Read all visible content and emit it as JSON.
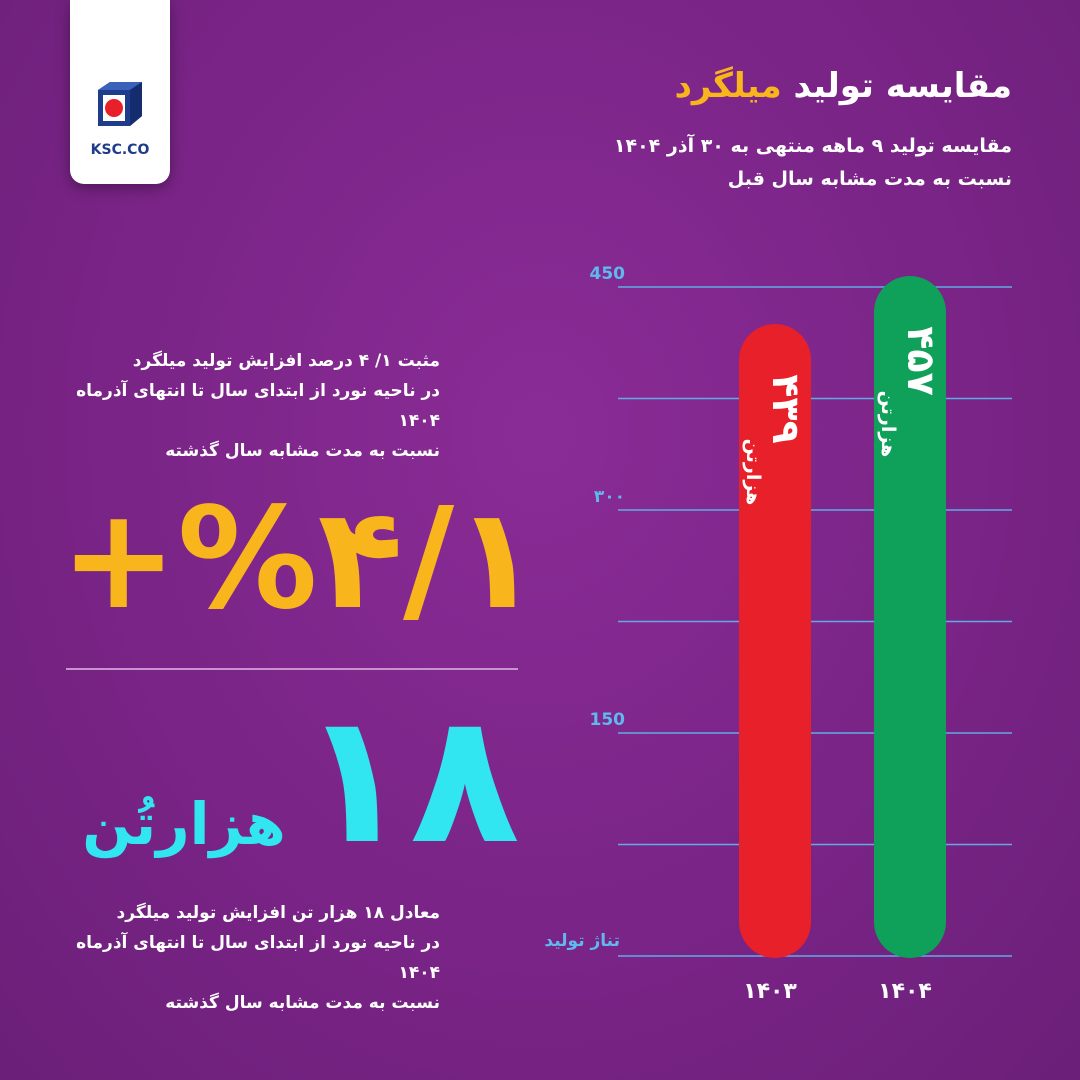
{
  "brand": {
    "logo_text": "KSC.CO"
  },
  "header": {
    "title_main": "مقایسه تولید",
    "title_accent": "میلگرد",
    "subtitle_line1": "مقایسه تولید ۹ ماهه منتهی به ۳۰ آذر ۱۴۰۴",
    "subtitle_line2": "نسبت به مدت مشابه سال قبل"
  },
  "stats": {
    "percent_desc": [
      "مثبت ۱/ ۴ درصد افزایش تولید میلگرد",
      "در ناحیه نورد از ابتدای سال تا انتهای آذرماه ۱۴۰۴",
      "نسبت به مدت مشابه سال گذشته"
    ],
    "percent_value": "+%۴/۱",
    "tons_value": "۱۸",
    "tons_unit": "هزارتُن",
    "tons_desc": [
      "معادل ۱۸ هزار تن افزایش تولید میلگرد",
      "در ناحیه نورد از ابتدای سال تا انتهای آذرماه ۱۴۰۴",
      "نسبت به مدت مشابه سال گذشته"
    ]
  },
  "colors": {
    "background": "#7a2487",
    "accent": "#f9b51c",
    "cyan": "#31e6f0",
    "bar_1403": "#e8202a",
    "bar_1404": "#0fa05a",
    "grid": "#5fb9ee"
  },
  "chart_data": {
    "type": "bar",
    "categories": [
      "۱۴۰۳",
      "۱۴۰۴"
    ],
    "values": [
      439,
      457
    ],
    "value_labels": [
      "۴۳۹",
      "۴۵۷"
    ],
    "unit": "هزارتن",
    "ylabel": "تناژ تولید",
    "yticks": [
      150,
      300,
      450
    ],
    "ytick_labels": [
      "150",
      "۳۰۰",
      "450"
    ],
    "ylim": [
      0,
      450
    ],
    "grid": true
  }
}
